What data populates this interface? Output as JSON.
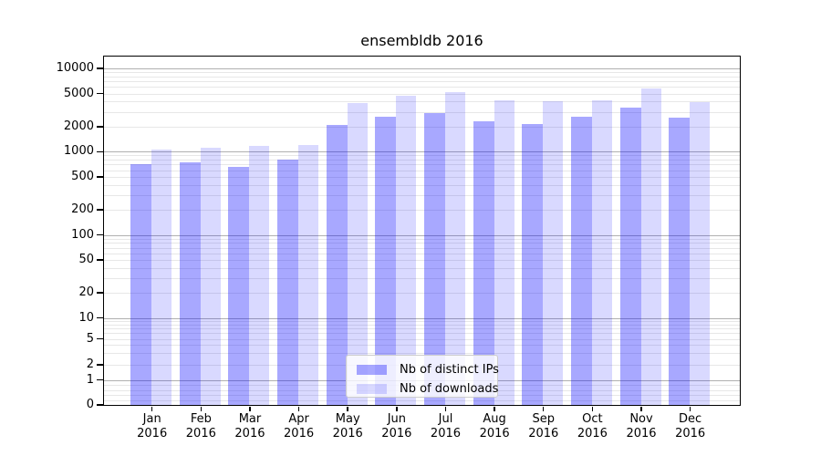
{
  "chart_data": {
    "type": "bar",
    "title": "ensembldb 2016",
    "categories": [
      "Jan 2016",
      "Feb 2016",
      "Mar 2016",
      "Apr 2016",
      "May 2016",
      "Jun 2016",
      "Jul 2016",
      "Aug 2016",
      "Sep 2016",
      "Oct 2016",
      "Nov 2016",
      "Dec 2016"
    ],
    "series": [
      {
        "name": "Nb of distinct IPs",
        "color": "#0000ff",
        "alpha": 0.34,
        "values": [
          700,
          735,
          655,
          800,
          2100,
          2600,
          2900,
          2300,
          2150,
          2600,
          3350,
          2550
        ]
      },
      {
        "name": "Nb of downloads",
        "color": "#0000ff",
        "alpha": 0.15,
        "values": [
          1070,
          1110,
          1170,
          1200,
          3850,
          4750,
          5200,
          4150,
          4050,
          4200,
          5700,
          3950
        ]
      }
    ],
    "xlabel": "",
    "ylabel": "",
    "yscale": "symlog",
    "ylim": [
      0,
      14000
    ],
    "yticks": [
      0,
      1,
      2,
      5,
      10,
      20,
      50,
      100,
      200,
      500,
      1000,
      2000,
      5000,
      10000
    ],
    "grid": "both",
    "legend_position": "lower center"
  },
  "colors": {
    "background": "#ffffff",
    "axis": "#000000",
    "grid_major": "#b0b0b0",
    "grid_minor": "#e7e7e7",
    "bar_distinct_ips_rendered": "#a9a9ff",
    "bar_downloads_rendered": "#d9d9ff",
    "legend_border": "#cccccc"
  }
}
